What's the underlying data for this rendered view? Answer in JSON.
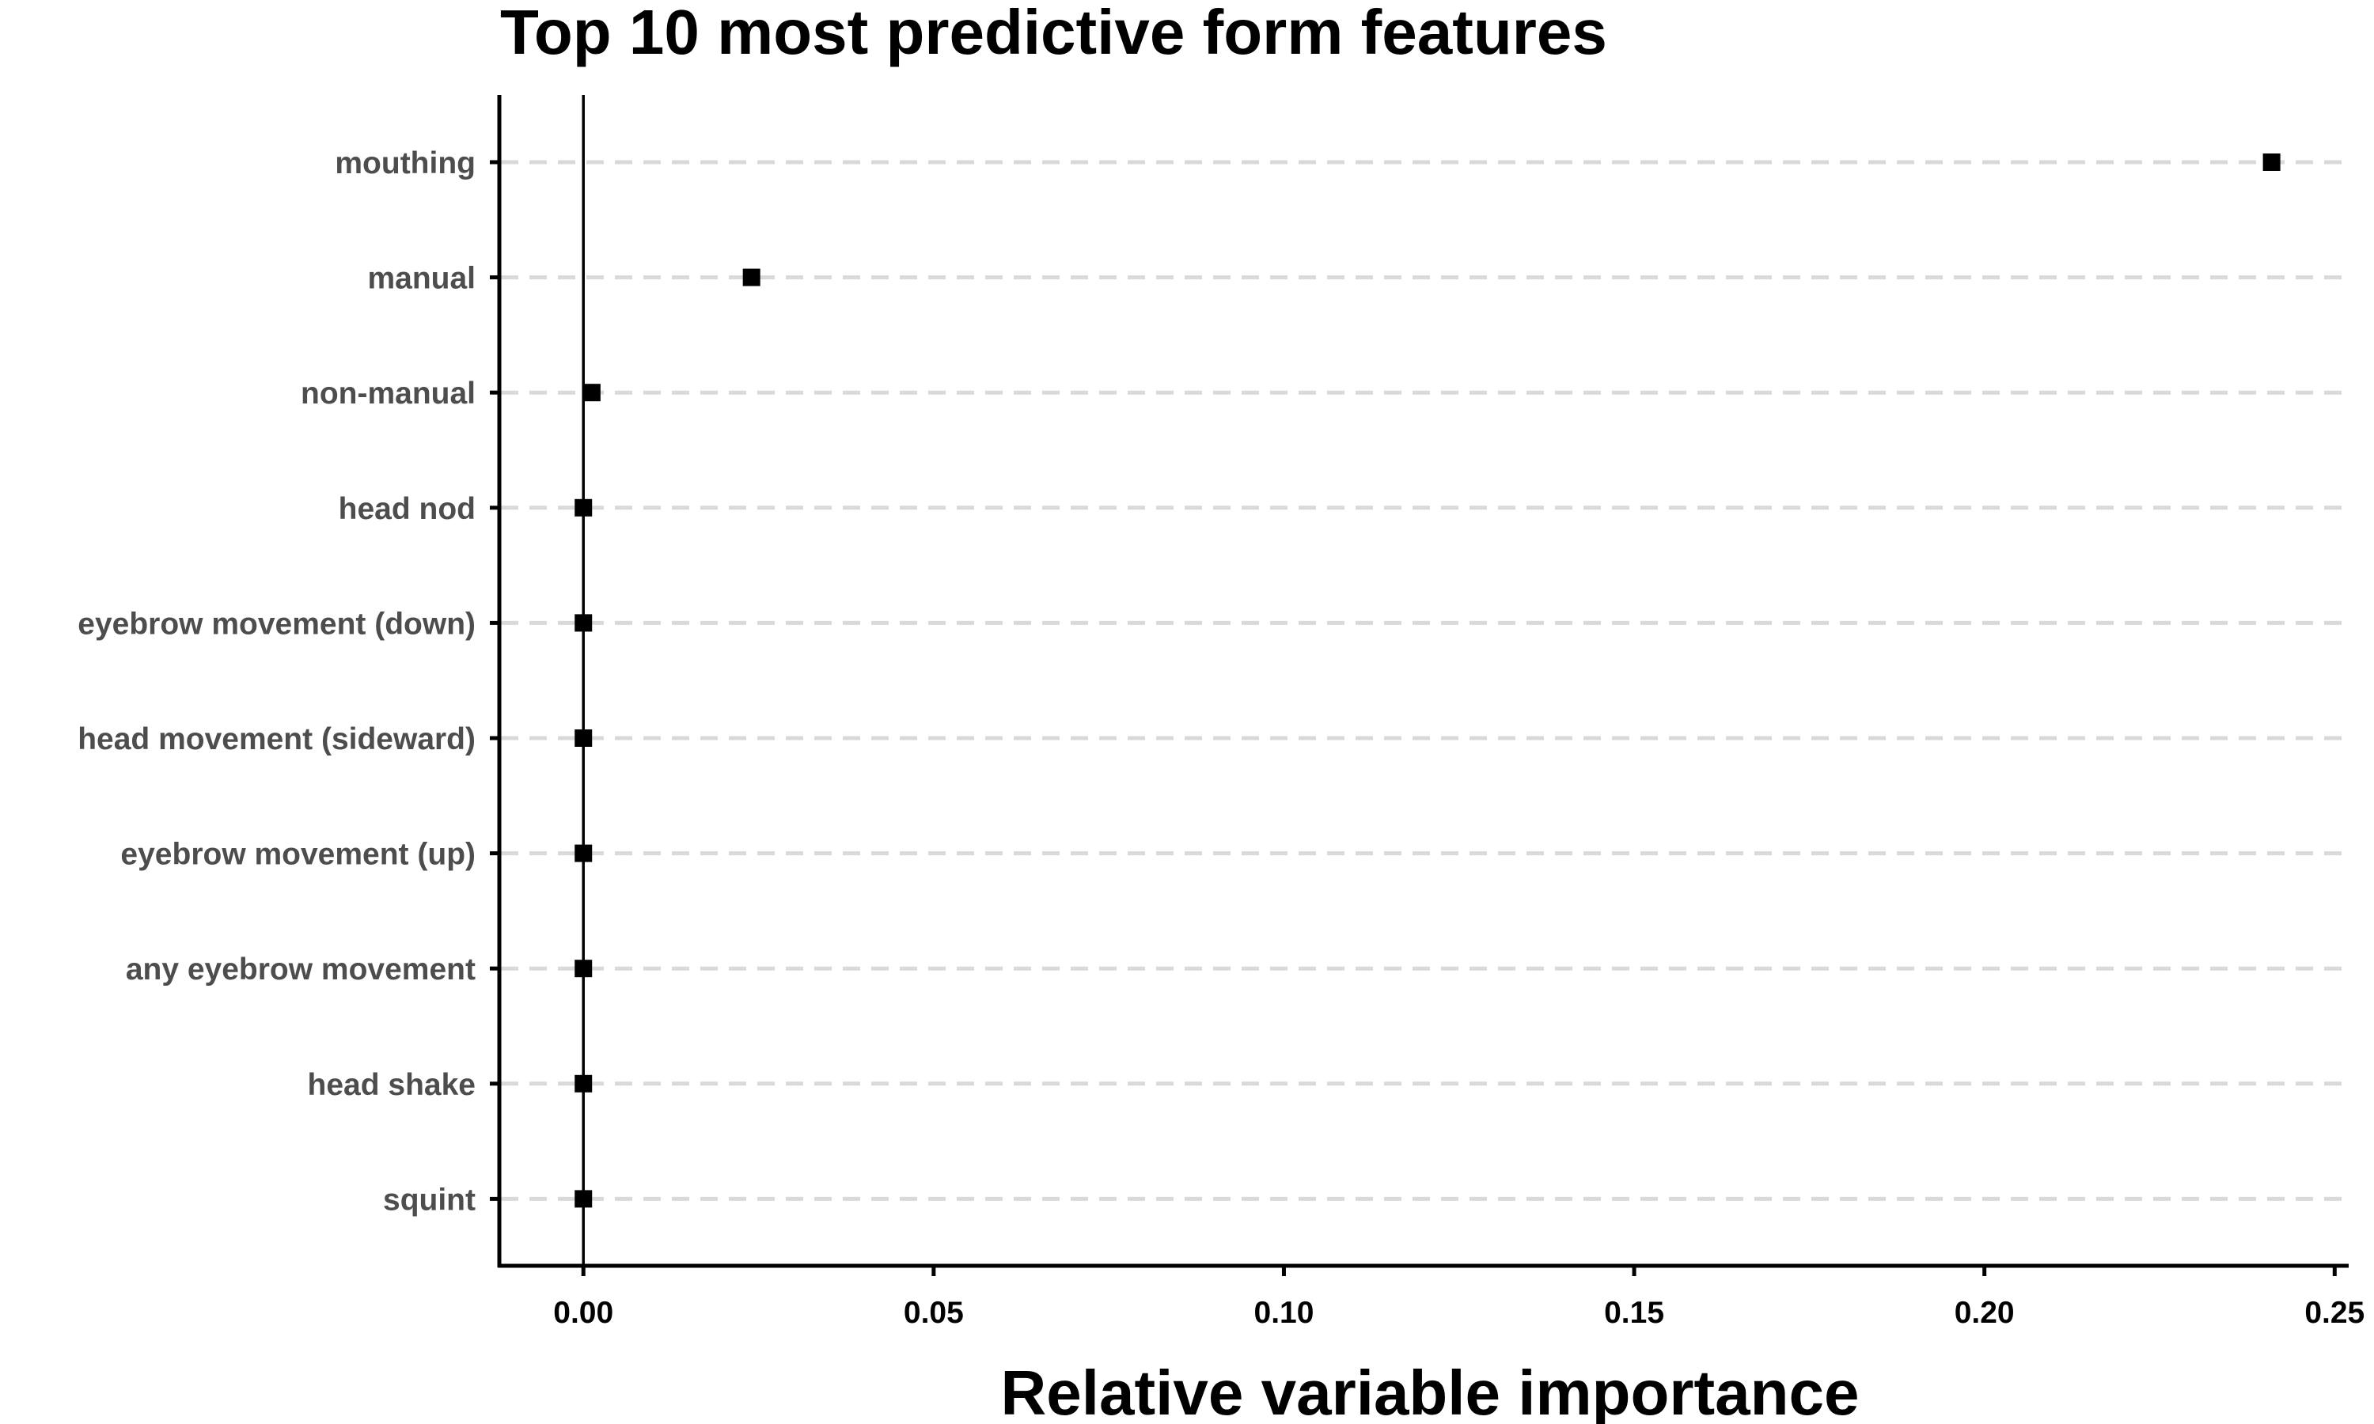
{
  "chart_data": {
    "type": "scatter",
    "title": "Top 10 most predictive form features",
    "xlabel": "Relative variable importance",
    "ylabel": "",
    "categories": [
      "mouthing",
      "manual",
      "non-manual",
      "head nod",
      "eyebrow movement (down)",
      "head movement (sideward)",
      "eyebrow movement (up)",
      "any eyebrow movement",
      "head shake",
      "squint"
    ],
    "values": [
      0.241,
      0.024,
      0.0012,
      0.0,
      0.0,
      0.0,
      0.0,
      0.0,
      0.0,
      0.0
    ],
    "xlim": [
      -0.012,
      0.252
    ],
    "xticks": [
      0.0,
      0.05,
      0.1,
      0.15,
      0.2,
      0.25
    ],
    "xtick_labels": [
      "0.00",
      "0.05",
      "0.10",
      "0.15",
      "0.20",
      "0.25"
    ],
    "reference_line_x": 0.0,
    "marker": "square",
    "grid": "horizontal-dashed",
    "legend": "none",
    "colors": {
      "points": "#000000",
      "grid": "#d9d9d9",
      "axis": "#000000",
      "category_labels": "#4d4d4d"
    }
  }
}
